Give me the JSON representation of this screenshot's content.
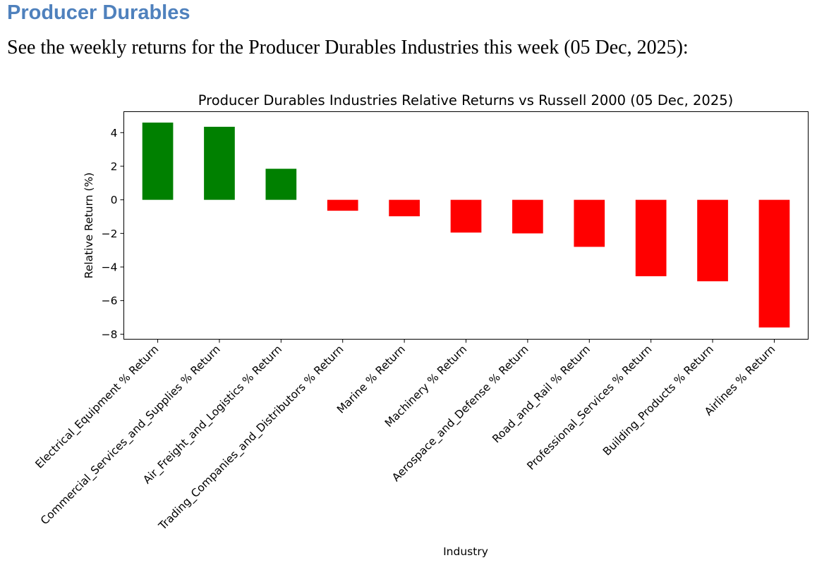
{
  "page": {
    "heading": "Producer Durables",
    "intro": "See the weekly returns for the Producer Durables Industries this week (05 Dec, 2025):"
  },
  "colors": {
    "heading": "#4f81bd",
    "positive": "#008000",
    "negative": "#ff0000"
  },
  "chart_data": {
    "type": "bar",
    "title": "Producer Durables Industries Relative Returns vs Russell 2000 (05 Dec, 2025)",
    "xlabel": "Industry",
    "ylabel": "Relative Return (%)",
    "ylim": [
      -8.3,
      5.25
    ],
    "yticks": [
      4,
      2,
      0,
      -2,
      -4,
      -6,
      -8
    ],
    "ytick_labels": [
      "4",
      "2",
      "0",
      "−2",
      "−4",
      "−6",
      "−8"
    ],
    "grid": false,
    "legend": "none",
    "categories": [
      "Electrical_Equipment % Return",
      "Commercial_Services_and_Supplies % Return",
      "Air_Freight_and_Logistics % Return",
      "Trading_Companies_and_Distributors % Return",
      "Marine % Return",
      "Machinery % Return",
      "Aerospace_and_Defense % Return",
      "Road_and_Rail % Return",
      "Professional_Services % Return",
      "Building_Products % Return",
      "Airlines % Return"
    ],
    "values": [
      4.6,
      4.35,
      1.85,
      -0.65,
      -0.98,
      -1.95,
      -2.0,
      -2.8,
      -4.55,
      -4.85,
      -7.6
    ]
  }
}
